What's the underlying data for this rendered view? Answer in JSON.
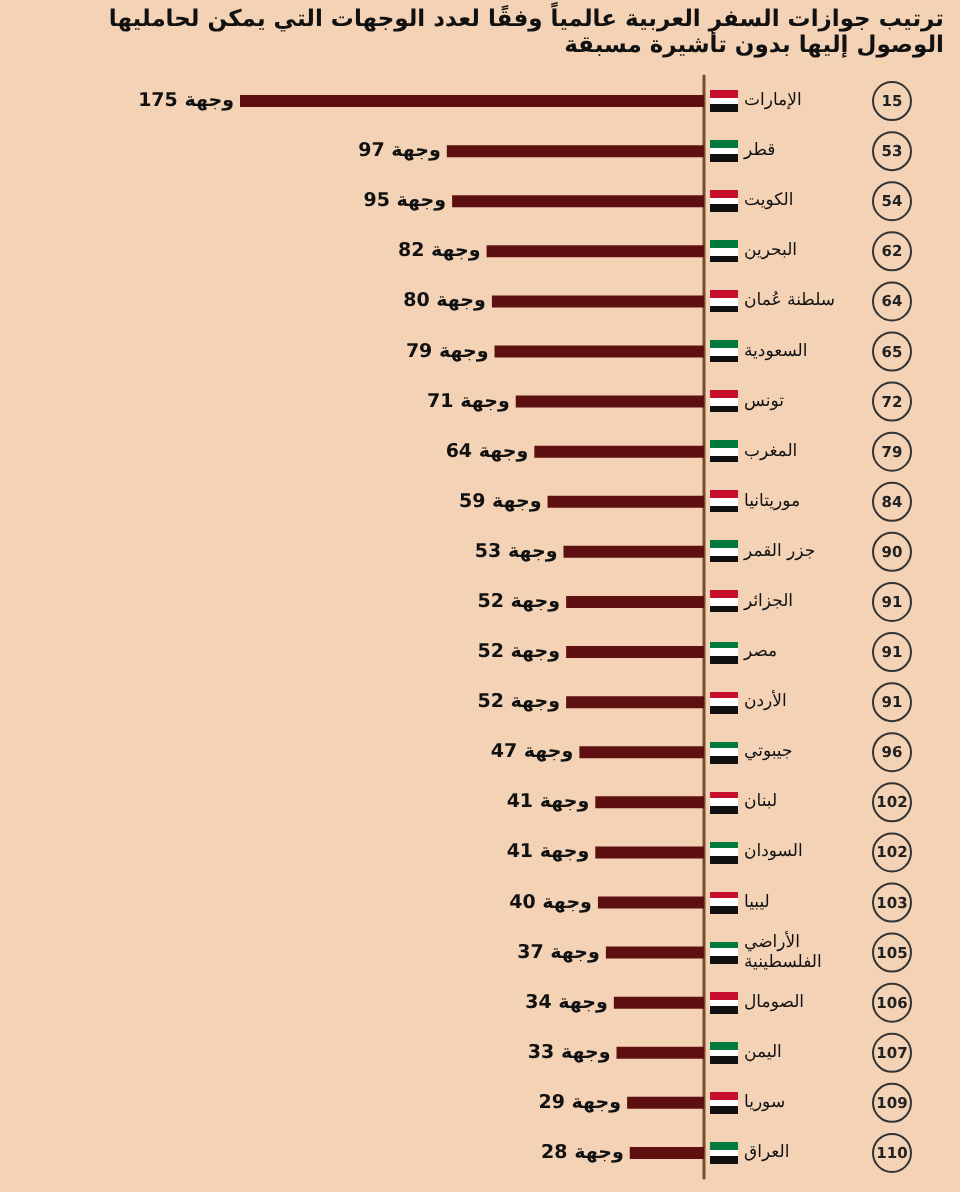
{
  "chart_data": {
    "type": "bar",
    "orientation": "horizontal",
    "title": "ترتيب جوازات السفر العربية عالمياً وفقًا لعدد الوجهات التي يمكن لحامليها الوصول إليها بدون تأشيرة مسبقة",
    "categories": [
      "الإمارات",
      "قطر",
      "الكويت",
      "البحرين",
      "سلطنة عُمان",
      "السعودية",
      "تونس",
      "المغرب",
      "موريتانيا",
      "جزر القمر",
      "الجزائر",
      "مصر",
      "الأردن",
      "جيبوتي",
      "لبنان",
      "السودان",
      "ليبيا",
      "الأراضي الفلسطينية",
      "الصومال",
      "اليمن",
      "سوريا",
      "العراق"
    ],
    "y2_categories": [
      "15",
      "53",
      "54",
      "62",
      "64",
      "65",
      "72",
      "79",
      "84",
      "90",
      "91",
      "91",
      "91",
      "96",
      "102",
      "102",
      "103",
      "105",
      "106",
      "107",
      "109",
      "110"
    ],
    "values": [
      175,
      97,
      95,
      82,
      80,
      79,
      71,
      64,
      59,
      53,
      52,
      52,
      52,
      47,
      41,
      41,
      40,
      37,
      34,
      33,
      29,
      28
    ],
    "value_labels": [
      "175 وجهة",
      "97 وجهة",
      "95 وجهة",
      "82 وجهة",
      "80 وجهة",
      "79 وجهة",
      "71 وجهة",
      "64 وجهة",
      "59 وجهة",
      "53 وجهة",
      "52 وجهة",
      "52 وجهة",
      "52 وجهة",
      "47 وجهة",
      "41 وجهة",
      "41 وجهة",
      "40 وجهة",
      "37 وجهة",
      "34 وجهة",
      "33 وجهة",
      "29 وجهة",
      "28 وجهة"
    ],
    "color": "#5e1010",
    "tick_labels": "y"
  }
}
